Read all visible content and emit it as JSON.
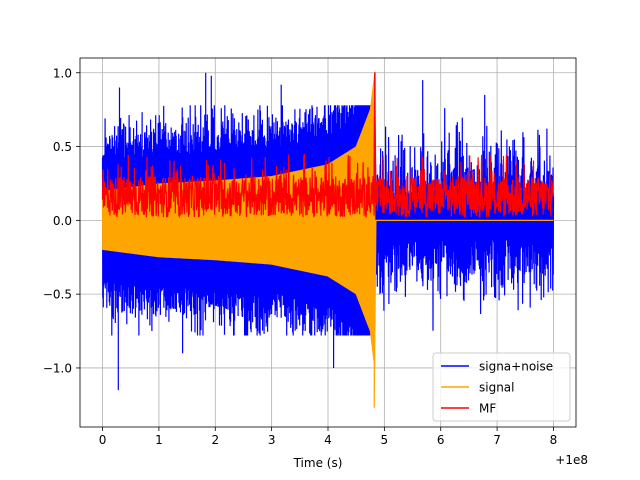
{
  "chart_data": {
    "type": "line",
    "title": "",
    "xlabel": "Time (s)",
    "ylabel": "",
    "x_offset_label": "+1e8",
    "xlim": [
      -0.4,
      8.4
    ],
    "ylim": [
      -1.4,
      1.1
    ],
    "x_ticks": [
      0,
      1,
      2,
      3,
      4,
      5,
      6,
      7,
      8
    ],
    "x_tick_labels": [
      "0",
      "1",
      "2",
      "3",
      "4",
      "5",
      "6",
      "7",
      "8"
    ],
    "y_ticks": [
      -1.0,
      -0.5,
      0.0,
      0.5,
      1.0
    ],
    "y_tick_labels": [
      "−1.0",
      "−0.5",
      "0.0",
      "0.5",
      "1.0"
    ],
    "grid": true,
    "legend_position": "lower-right",
    "merger_time": 4.83,
    "series": [
      {
        "name": "signa+noise",
        "color": "#0000ff",
        "description": "noise band roughly between -0.75 and 0.75 with spikes to about 1.0 and -1.15",
        "band": [
          -0.75,
          0.75
        ],
        "peaks": [
          {
            "x": 0.28,
            "y": -1.15
          },
          {
            "x": 0.3,
            "y": 0.9
          },
          {
            "x": 1.83,
            "y": 1.0
          },
          {
            "x": 1.93,
            "y": 0.98
          },
          {
            "x": 3.17,
            "y": 0.92
          },
          {
            "x": 5.68,
            "y": 0.95
          },
          {
            "x": 6.78,
            "y": 0.85
          },
          {
            "x": 4.1,
            "y": -1.0
          },
          {
            "x": 1.42,
            "y": -0.9
          }
        ]
      },
      {
        "name": "signal",
        "color": "#ffa500",
        "description": "chirp whose envelope grows from about 0.25 at t=0 to a peak near t=4.83 (max 1.0, min -1.27), then drops to 0",
        "envelope": [
          {
            "x": 0.0,
            "y": 0.2
          },
          {
            "x": 1.0,
            "y": 0.25
          },
          {
            "x": 2.0,
            "y": 0.27
          },
          {
            "x": 3.0,
            "y": 0.3
          },
          {
            "x": 4.0,
            "y": 0.38
          },
          {
            "x": 4.5,
            "y": 0.5
          },
          {
            "x": 4.75,
            "y": 0.75
          },
          {
            "x": 4.83,
            "y": 1.0
          }
        ],
        "peak_max": 1.0,
        "peak_min": -1.27
      },
      {
        "name": "MF",
        "color": "#ff0000",
        "description": "matched filter output between about 0.0 and 0.3 with spikes near 0.45, peak 1.0 at t=4.83",
        "band": [
          0.02,
          0.3
        ],
        "peak": {
          "x": 4.83,
          "y": 1.0
        }
      }
    ]
  }
}
